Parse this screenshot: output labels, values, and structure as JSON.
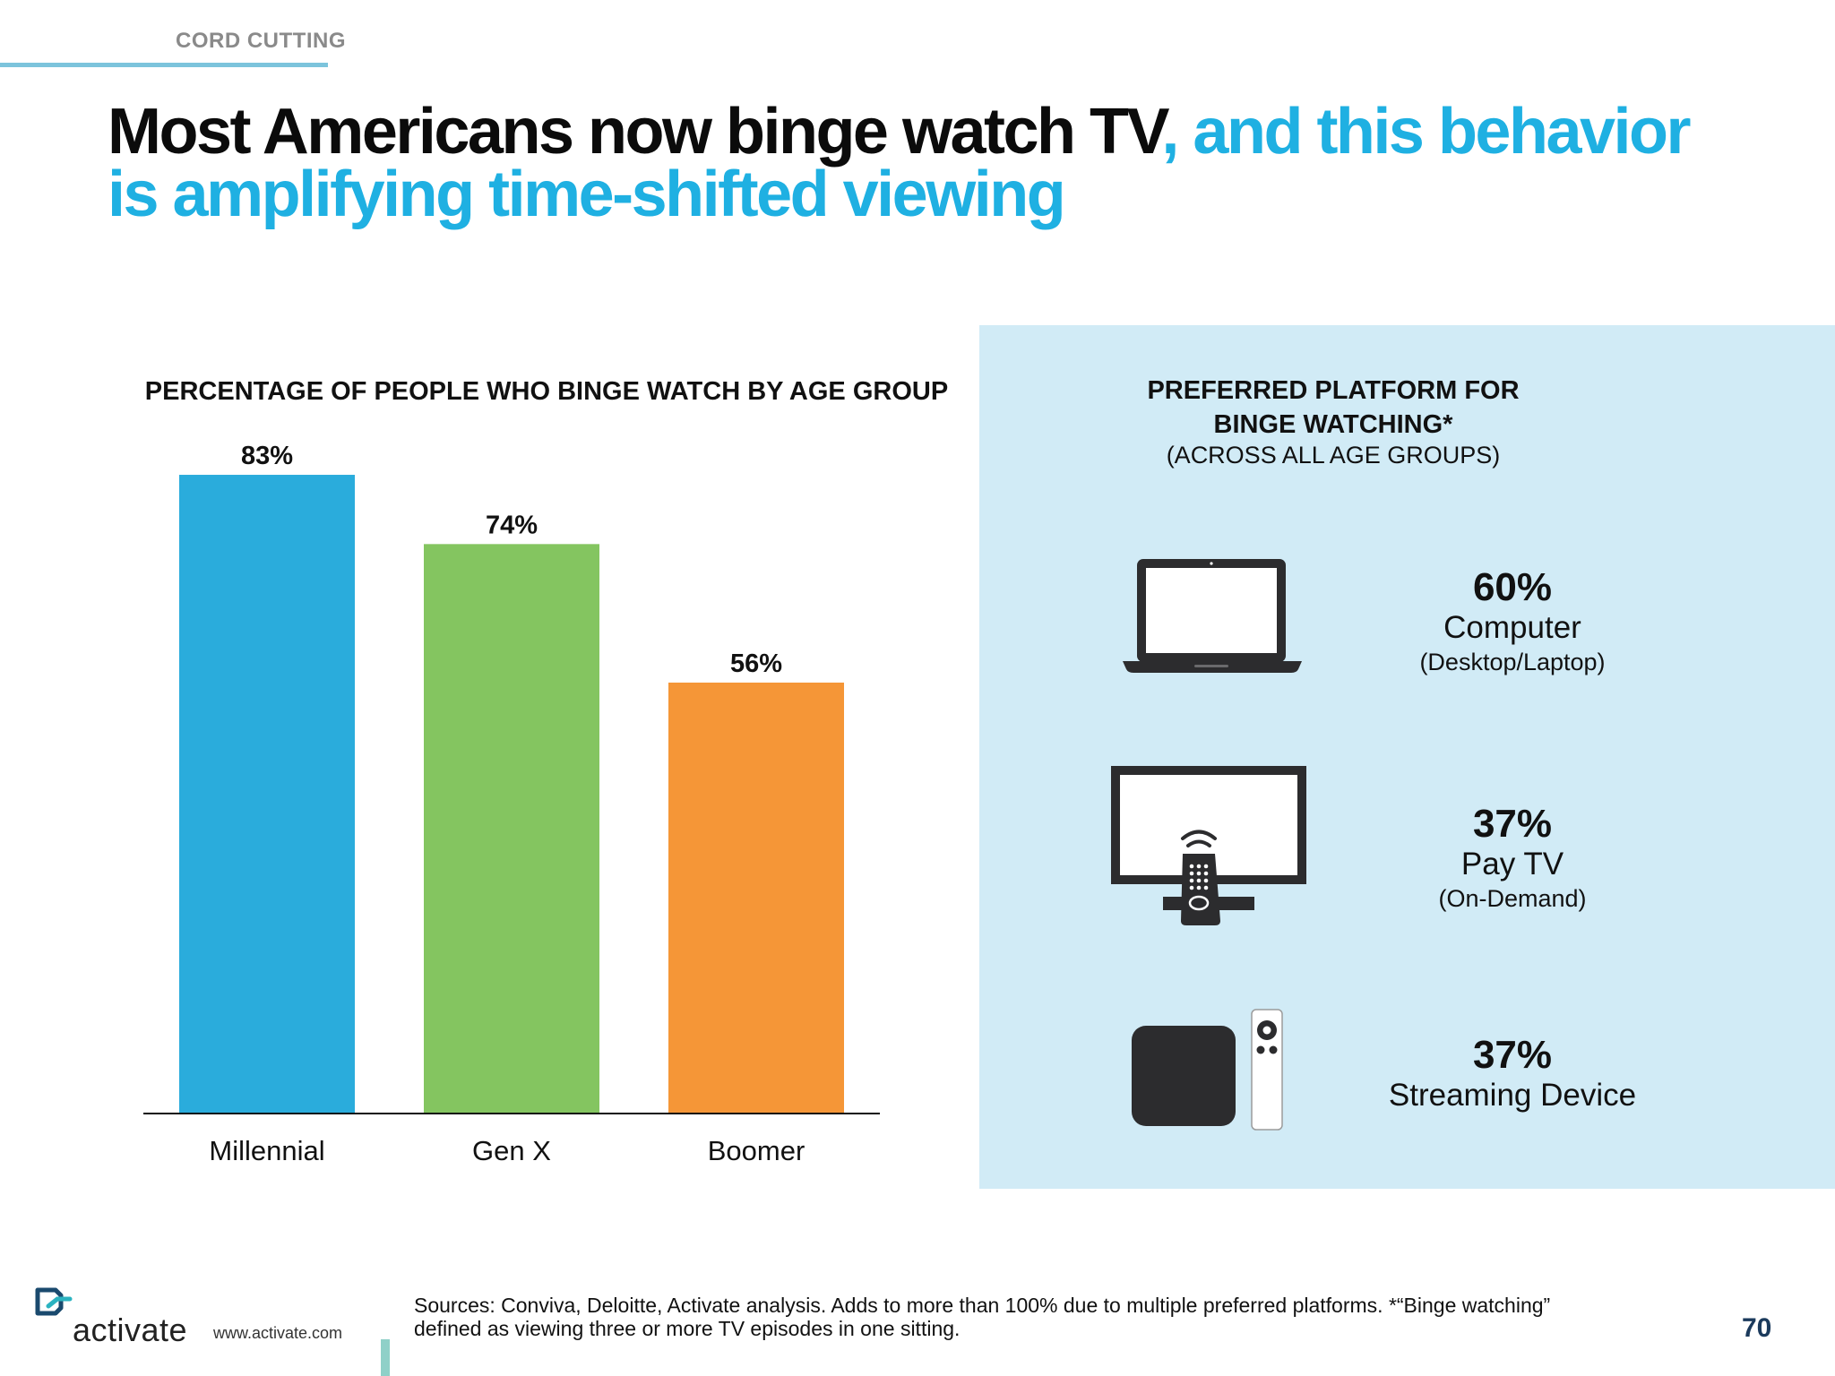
{
  "section_label": "CORD CUTTING",
  "headline": {
    "dark": "Most Americans now binge watch TV",
    "accent": ", and this behavior is amplifying time-shifted viewing"
  },
  "colors": {
    "accent": "#1fb0e2",
    "millennial": "#2aacdc",
    "genx": "#84c560",
    "boomer": "#f59637",
    "panel": "#d1ebf6"
  },
  "chart_data": {
    "type": "bar",
    "title": "PERCENTAGE OF PEOPLE WHO BINGE WATCH BY AGE GROUP",
    "categories": [
      "Millennial",
      "Gen X",
      "Boomer"
    ],
    "values": [
      83,
      74,
      56
    ],
    "data_labels": [
      "83%",
      "74%",
      "56%"
    ],
    "unit": "%",
    "ylim": [
      0,
      100
    ],
    "grid": false,
    "legend": "none"
  },
  "panel": {
    "title_line1": "PREFERRED PLATFORM FOR",
    "title_line2": "BINGE WATCHING*",
    "subtitle": "(ACROSS ALL AGE GROUPS)",
    "platforms": [
      {
        "icon": "laptop-icon",
        "pct": "60%",
        "name": "Computer",
        "detail": "(Desktop/Laptop)"
      },
      {
        "icon": "tv-remote-icon",
        "pct": "37%",
        "name": "Pay TV",
        "detail": "(On-Demand)"
      },
      {
        "icon": "streaming-box-icon",
        "pct": "37%",
        "name": "Streaming Device",
        "detail": ""
      }
    ]
  },
  "footer": {
    "brand": "activate",
    "url": "www.activate.com",
    "sources_line1": "Sources: Conviva, Deloitte, Activate analysis.   Adds to more than 100% due to multiple preferred platforms. *“Binge watching”",
    "sources_line2": "defined as viewing three or more TV episodes in one sitting.",
    "page": "70"
  }
}
